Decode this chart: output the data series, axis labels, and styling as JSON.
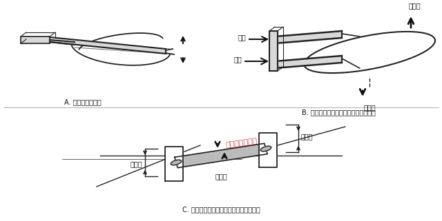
{
  "bg_color": "#ffffff",
  "title_a": "A. 振动中的传感管",
  "title_b": "B. 向上运动时在一根传感管上的作用力",
  "title_c": "C. 表示力偶及管子扭曲的传感器端面视图",
  "label_flow1": "流量",
  "label_flow2": "流量",
  "label_fluid_force1": "流体力",
  "label_fluid_force2": "流体力",
  "label_twist1": "扭转角",
  "label_twist2": "扭转角",
  "label_drive": "驱动力",
  "label_watermark": "江苏华云流量计",
  "text_color": "#111111",
  "watermark_color": "#cc2222",
  "line_color": "#222222",
  "fill_color": "#d8d8d8",
  "arrow_color": "#111111"
}
